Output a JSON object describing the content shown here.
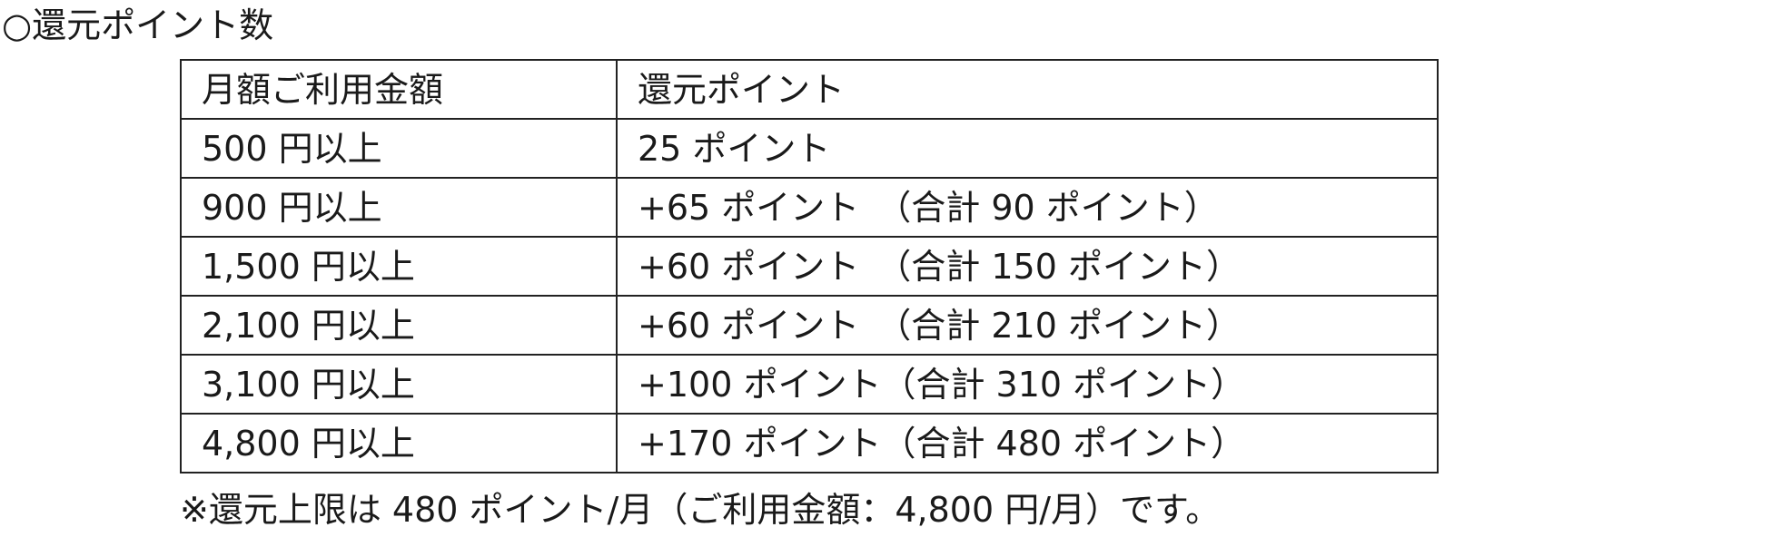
{
  "title": "○還元ポイント数",
  "table": {
    "headers": [
      "月額ご利用金額",
      "還元ポイント"
    ],
    "rows": [
      [
        "500 円以上",
        "25 ポイント"
      ],
      [
        "900 円以上",
        "+65 ポイント　（合計 90 ポイント）"
      ],
      [
        "1,500 円以上",
        "+60 ポイント　（合計 150 ポイント）"
      ],
      [
        "2,100 円以上",
        "+60 ポイント　（合計 210 ポイント）"
      ],
      [
        "3,100 円以上",
        "+100 ポイント（合計 310 ポイント）"
      ],
      [
        "4,800 円以上",
        "+170 ポイント（合計 480 ポイント）"
      ]
    ]
  },
  "note": "※還元上限は 480 ポイント/月（ご利用金額：4,800 円/月）です。"
}
